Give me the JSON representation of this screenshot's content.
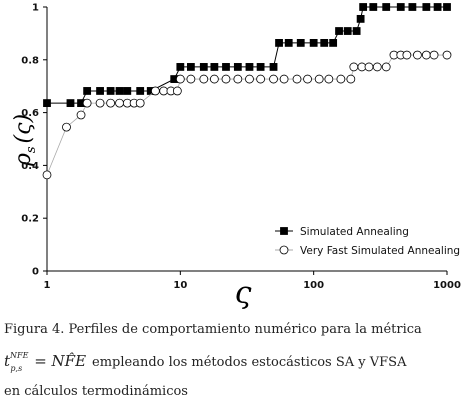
{
  "chart_data": {
    "type": "line",
    "xlabel": "ς",
    "ylabel": {
      "main": "ρ",
      "sub": "s",
      "rest": "(ς)"
    },
    "xscale": "log",
    "xlim": [
      1,
      1000
    ],
    "xticks": [
      1,
      10,
      100,
      1000
    ],
    "ylim": [
      0,
      1
    ],
    "yticks": [
      0,
      0.2,
      0.4,
      0.6,
      0.8,
      1
    ],
    "legend": "lower right",
    "series": [
      {
        "name": "Simulated Annealing",
        "color": "#000000",
        "marker": "square",
        "x": [
          1,
          1.5,
          1.8,
          2,
          2.5,
          3,
          3.5,
          4,
          5,
          6,
          9,
          10,
          12,
          15,
          18,
          22,
          27,
          33,
          40,
          50,
          55,
          65,
          80,
          100,
          120,
          140,
          155,
          180,
          210,
          225,
          235,
          280,
          350,
          450,
          550,
          700,
          850,
          1000
        ],
        "values": [
          0.636,
          0.636,
          0.636,
          0.682,
          0.682,
          0.682,
          0.682,
          0.682,
          0.682,
          0.682,
          0.727,
          0.773,
          0.773,
          0.773,
          0.773,
          0.773,
          0.773,
          0.773,
          0.773,
          0.773,
          0.864,
          0.864,
          0.864,
          0.864,
          0.864,
          0.864,
          0.909,
          0.909,
          0.909,
          0.955,
          1,
          1,
          1,
          1,
          1,
          1,
          1,
          1
        ]
      },
      {
        "name": "Very Fast Simulated Annealing",
        "color": "#ffffff",
        "marker": "circle",
        "x": [
          1,
          1.4,
          1.8,
          2,
          2.5,
          3,
          3.5,
          4,
          4.5,
          5,
          6.5,
          7.5,
          8.5,
          9.5,
          10,
          12,
          15,
          18,
          22,
          27,
          33,
          40,
          50,
          60,
          75,
          90,
          110,
          130,
          160,
          190,
          200,
          230,
          260,
          300,
          350,
          400,
          450,
          500,
          600,
          700,
          800,
          1000
        ],
        "values": [
          0.364,
          0.545,
          0.591,
          0.636,
          0.636,
          0.636,
          0.636,
          0.636,
          0.636,
          0.636,
          0.682,
          0.682,
          0.682,
          0.682,
          0.727,
          0.727,
          0.727,
          0.727,
          0.727,
          0.727,
          0.727,
          0.727,
          0.727,
          0.727,
          0.727,
          0.727,
          0.727,
          0.727,
          0.727,
          0.727,
          0.773,
          0.773,
          0.773,
          0.773,
          0.773,
          0.818,
          0.818,
          0.818,
          0.818,
          0.818,
          0.818,
          0.818
        ]
      }
    ],
    "caption": {
      "line1": "Figura 4. Perfiles de comportamiento numérico para la métrica",
      "formula": {
        "base": "t",
        "sub": "p,s",
        "sup": "NFE",
        "rhs": "= NF̂E"
      },
      "line2_rest": "empleando los métodos estocásticos SA y VFSA",
      "line3": "en cálculos termodinámicos"
    }
  }
}
